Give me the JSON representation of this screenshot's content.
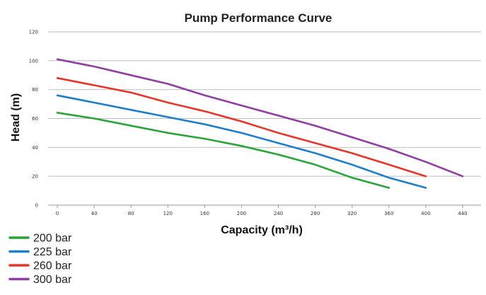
{
  "chart_data": {
    "type": "line",
    "title": "Pump Performance Curve",
    "xlabel": "Capacity (m³/h)",
    "ylabel": "Head (m)",
    "xlim": [
      0,
      440
    ],
    "ylim": [
      0,
      120
    ],
    "x_ticks": [
      "0",
      "40",
      "80",
      "120",
      "160",
      "200",
      "240",
      "280",
      "320",
      "360",
      "400",
      "440"
    ],
    "y_ticks": [
      "0",
      "20",
      "40",
      "60",
      "80",
      "100",
      "120"
    ],
    "grid": "horizontal",
    "legend_position": "bottom-left",
    "series": [
      {
        "name": "200 bar",
        "color": "#2aa43a",
        "points": [
          [
            0,
            64
          ],
          [
            40,
            60
          ],
          [
            80,
            55
          ],
          [
            120,
            50
          ],
          [
            160,
            46
          ],
          [
            200,
            41
          ],
          [
            240,
            35
          ],
          [
            280,
            28
          ],
          [
            320,
            19
          ],
          [
            360,
            12
          ]
        ]
      },
      {
        "name": "225 bar",
        "color": "#1e7fc8",
        "points": [
          [
            0,
            76
          ],
          [
            40,
            71
          ],
          [
            80,
            66
          ],
          [
            120,
            61
          ],
          [
            160,
            56
          ],
          [
            200,
            50
          ],
          [
            240,
            43
          ],
          [
            280,
            36
          ],
          [
            320,
            28
          ],
          [
            360,
            19
          ],
          [
            400,
            12
          ]
        ]
      },
      {
        "name": "260 bar",
        "color": "#e4362a",
        "points": [
          [
            0,
            88
          ],
          [
            40,
            83
          ],
          [
            80,
            78
          ],
          [
            120,
            71
          ],
          [
            160,
            65
          ],
          [
            200,
            58
          ],
          [
            240,
            50
          ],
          [
            280,
            43
          ],
          [
            320,
            36
          ],
          [
            360,
            28
          ],
          [
            400,
            20
          ]
        ]
      },
      {
        "name": "300 bar",
        "color": "#8e3fa0",
        "points": [
          [
            0,
            101
          ],
          [
            40,
            96
          ],
          [
            80,
            90
          ],
          [
            120,
            84
          ],
          [
            160,
            76
          ],
          [
            200,
            69
          ],
          [
            240,
            62
          ],
          [
            280,
            55
          ],
          [
            320,
            47
          ],
          [
            360,
            39
          ],
          [
            400,
            30
          ],
          [
            440,
            20
          ]
        ]
      }
    ]
  }
}
